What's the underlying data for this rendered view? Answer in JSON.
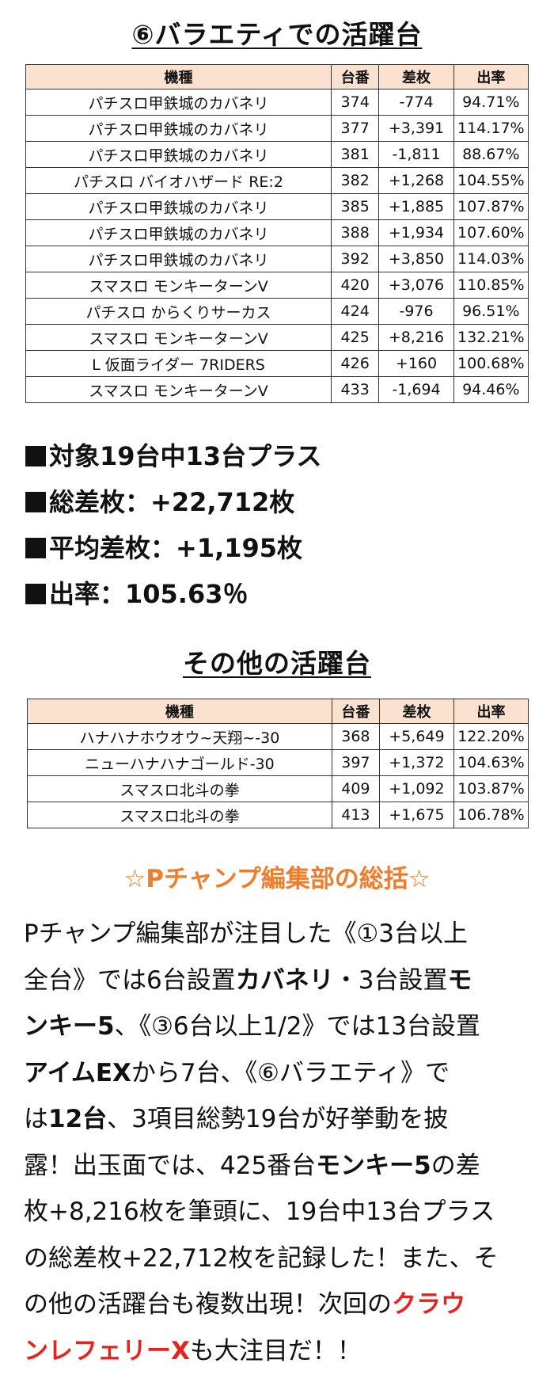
{
  "section1": {
    "title": "⑥バラエティでの活躍台",
    "headers": [
      "機種",
      "台番",
      "差枚",
      "出率"
    ],
    "rows": [
      [
        "パチスロ甲鉄城のカバネリ",
        "374",
        "-774",
        "94.71%"
      ],
      [
        "パチスロ甲鉄城のカバネリ",
        "377",
        "+3,391",
        "114.17%"
      ],
      [
        "パチスロ甲鉄城のカバネリ",
        "381",
        "-1,811",
        "88.67%"
      ],
      [
        "パチスロ バイオハザード RE:2",
        "382",
        "+1,268",
        "104.55%"
      ],
      [
        "パチスロ甲鉄城のカバネリ",
        "385",
        "+1,885",
        "107.87%"
      ],
      [
        "パチスロ甲鉄城のカバネリ",
        "388",
        "+1,934",
        "107.60%"
      ],
      [
        "パチスロ甲鉄城のカバネリ",
        "392",
        "+3,850",
        "114.03%"
      ],
      [
        "スマスロ モンキーターンV",
        "420",
        "+3,076",
        "110.85%"
      ],
      [
        "パチスロ からくりサーカス",
        "424",
        "-976",
        "96.51%"
      ],
      [
        "スマスロ モンキーターンV",
        "425",
        "+8,216",
        "132.21%"
      ],
      [
        "L 仮面ライダー 7RIDERS",
        "426",
        "+160",
        "100.68%"
      ],
      [
        "スマスロ モンキーターンV",
        "433",
        "-1,694",
        "94.46%"
      ]
    ]
  },
  "stats": [
    "対象19台中13台プラス",
    "総差枚：+22,712枚",
    "平均差枚：+1,195枚",
    "出率：105.63％"
  ],
  "section2": {
    "title": "その他の活躍台",
    "headers": [
      "機種",
      "台番",
      "差枚",
      "出率"
    ],
    "rows": [
      [
        "ハナハナホウオウ~天翔~-30",
        "368",
        "+5,649",
        "122.20%"
      ],
      [
        "ニューハナハナゴールド-30",
        "397",
        "+1,372",
        "104.63%"
      ],
      [
        "スマスロ北斗の拳",
        "409",
        "+1,092",
        "103.87%"
      ],
      [
        "スマスロ北斗の拳",
        "413",
        "+1,675",
        "106.78%"
      ]
    ]
  },
  "summary": {
    "title": "☆Pチャンプ編集部の総括☆",
    "lines": [
      [
        {
          "t": "Pチャンプ編集部が注目した《①3台以上",
          "s": "n"
        }
      ],
      [
        {
          "t": "全台》では6台設置",
          "s": "n"
        },
        {
          "t": "カバネリ",
          "s": "b"
        },
        {
          "t": "・3台設置",
          "s": "n"
        },
        {
          "t": "モ",
          "s": "b"
        }
      ],
      [
        {
          "t": "ンキー5",
          "s": "b"
        },
        {
          "t": "、《③6台以上1/2》では13台設置",
          "s": "n"
        }
      ],
      [
        {
          "t": "アイムEX",
          "s": "b"
        },
        {
          "t": "から7台、《⑥バラエティ》で",
          "s": "n"
        }
      ],
      [
        {
          "t": "は",
          "s": "n"
        },
        {
          "t": "12台",
          "s": "b"
        },
        {
          "t": "、3項目総勢19台が好挙動を披",
          "s": "n"
        }
      ],
      [
        {
          "t": "露！出玉面では、425番台",
          "s": "n"
        },
        {
          "t": "モンキー5",
          "s": "b"
        },
        {
          "t": "の差",
          "s": "n"
        }
      ],
      [
        {
          "t": "枚+8,216枚を筆頭に、19台中13台プラス",
          "s": "n"
        }
      ],
      [
        {
          "t": "の総差枚+22,712枚を記録した！また、そ",
          "s": "n"
        }
      ],
      [
        {
          "t": "の他の活躍台も複数出現！次回の",
          "s": "n"
        },
        {
          "t": "クラウ",
          "s": "r"
        }
      ],
      [
        {
          "t": "ンレフェリーX",
          "s": "r"
        },
        {
          "t": "も大注目だ！！",
          "s": "n"
        }
      ]
    ]
  },
  "colors": {
    "header_bg": "#fbe1cf",
    "summary_title": "#ef7d2c",
    "highlight_red": "#e8231f"
  }
}
